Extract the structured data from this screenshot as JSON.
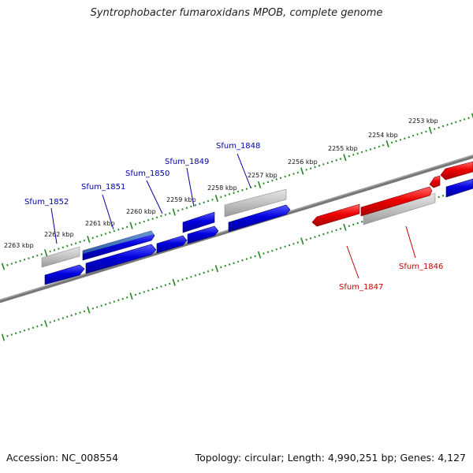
{
  "title": "Syntrophobacter fumaroxidans MPOB, complete genome",
  "footer": {
    "accession": "Accession: NC_008554",
    "summary": "Topology: circular; Length: 4,990,251 bp; Genes: 4,127"
  },
  "colors": {
    "forward_gene": "#0000dd",
    "reverse_gene": "#ee0000",
    "other_feature": "#b8b8b8",
    "tick": "#228822",
    "backbone": "#777777",
    "forward_label": "#0000aa",
    "reverse_label": "#cc0000"
  },
  "kbp_labels": [
    "2263 kbp",
    "2262 kbp",
    "2261 kbp",
    "2260 kbp",
    "2259 kbp",
    "2258 kbp",
    "2257 kbp",
    "2256 kbp",
    "2255 kbp",
    "2254 kbp",
    "2253 kbp"
  ],
  "gene_labels": [
    {
      "name": "Sfum_1852",
      "strand": "forward"
    },
    {
      "name": "Sfum_1851",
      "strand": "forward"
    },
    {
      "name": "Sfum_1850",
      "strand": "forward"
    },
    {
      "name": "Sfum_1849",
      "strand": "forward"
    },
    {
      "name": "Sfum_1848",
      "strand": "forward"
    },
    {
      "name": "Sfum_1847",
      "strand": "reverse"
    },
    {
      "name": "Sfum_1846",
      "strand": "reverse"
    }
  ]
}
